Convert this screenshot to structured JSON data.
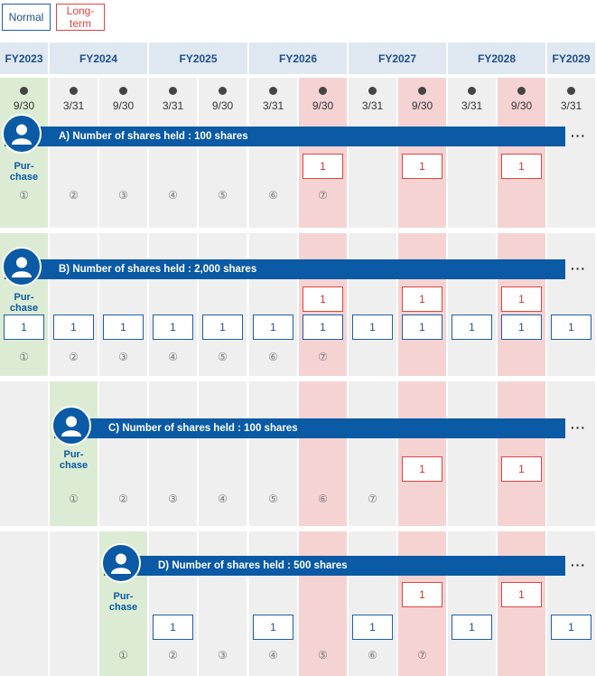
{
  "legend": {
    "normal": "Normal",
    "long_term": "Long-\nterm"
  },
  "fiscal_years": [
    "FY2023",
    "FY2024",
    "FY2025",
    "FY2026",
    "FY2027",
    "FY2028",
    "FY2029"
  ],
  "dates": [
    "9/30",
    "3/31",
    "9/30",
    "3/31",
    "9/30",
    "3/31",
    "9/30",
    "3/31",
    "9/30",
    "3/31",
    "9/30",
    "3/31"
  ],
  "long_term_date_indices": [
    6,
    8,
    10
  ],
  "purchase_label": "Pur-\nchase",
  "more_indicator": "···",
  "cases": [
    {
      "id": "A",
      "label": "A) Number of shares held : 100 shares",
      "purchase_index": 0,
      "long_term_boxes": [
        {
          "date_index": 6,
          "value": "1"
        },
        {
          "date_index": 8,
          "value": "1"
        },
        {
          "date_index": 10,
          "value": "1"
        }
      ],
      "normal_boxes": [],
      "periods": [
        {
          "date_index": 0,
          "text": "①"
        },
        {
          "date_index": 1,
          "text": "②"
        },
        {
          "date_index": 2,
          "text": "③"
        },
        {
          "date_index": 3,
          "text": "④"
        },
        {
          "date_index": 4,
          "text": "⑤"
        },
        {
          "date_index": 5,
          "text": "⑥"
        },
        {
          "date_index": 6,
          "text": "⑦"
        }
      ]
    },
    {
      "id": "B",
      "label": "B) Number of shares held : 2,000 shares",
      "purchase_index": 0,
      "long_term_boxes": [
        {
          "date_index": 6,
          "value": "1"
        },
        {
          "date_index": 8,
          "value": "1"
        },
        {
          "date_index": 10,
          "value": "1"
        }
      ],
      "normal_boxes": [
        {
          "date_index": 0,
          "value": "1"
        },
        {
          "date_index": 1,
          "value": "1"
        },
        {
          "date_index": 2,
          "value": "1"
        },
        {
          "date_index": 3,
          "value": "1"
        },
        {
          "date_index": 4,
          "value": "1"
        },
        {
          "date_index": 5,
          "value": "1"
        },
        {
          "date_index": 6,
          "value": "1"
        },
        {
          "date_index": 7,
          "value": "1"
        },
        {
          "date_index": 8,
          "value": "1"
        },
        {
          "date_index": 9,
          "value": "1"
        },
        {
          "date_index": 10,
          "value": "1"
        },
        {
          "date_index": 11,
          "value": "1"
        }
      ],
      "periods": [
        {
          "date_index": 0,
          "text": "①"
        },
        {
          "date_index": 1,
          "text": "②"
        },
        {
          "date_index": 2,
          "text": "③"
        },
        {
          "date_index": 3,
          "text": "④"
        },
        {
          "date_index": 4,
          "text": "⑤"
        },
        {
          "date_index": 5,
          "text": "⑥"
        },
        {
          "date_index": 6,
          "text": "⑦"
        }
      ]
    },
    {
      "id": "C",
      "label": "C) Number of shares held : 100 shares",
      "purchase_index": 1,
      "long_term_boxes": [
        {
          "date_index": 8,
          "value": "1"
        },
        {
          "date_index": 10,
          "value": "1"
        }
      ],
      "normal_boxes": [],
      "periods": [
        {
          "date_index": 1,
          "text": "①"
        },
        {
          "date_index": 2,
          "text": "②"
        },
        {
          "date_index": 3,
          "text": "③"
        },
        {
          "date_index": 4,
          "text": "④"
        },
        {
          "date_index": 5,
          "text": "⑤"
        },
        {
          "date_index": 6,
          "text": "⑥"
        },
        {
          "date_index": 7,
          "text": "⑦"
        }
      ]
    },
    {
      "id": "D",
      "label": "D) Number of shares held : 500 shares",
      "purchase_index": 2,
      "long_term_boxes": [
        {
          "date_index": 8,
          "value": "1"
        },
        {
          "date_index": 10,
          "value": "1"
        }
      ],
      "normal_boxes": [
        {
          "date_index": 3,
          "value": "1"
        },
        {
          "date_index": 5,
          "value": "1"
        },
        {
          "date_index": 7,
          "value": "1"
        },
        {
          "date_index": 9,
          "value": "1"
        },
        {
          "date_index": 11,
          "value": "1"
        }
      ],
      "periods": [
        {
          "date_index": 2,
          "text": "①"
        },
        {
          "date_index": 3,
          "text": "②"
        },
        {
          "date_index": 4,
          "text": "③"
        },
        {
          "date_index": 5,
          "text": "④"
        },
        {
          "date_index": 6,
          "text": "⑤"
        },
        {
          "date_index": 7,
          "text": "⑥"
        },
        {
          "date_index": 8,
          "text": "⑦"
        }
      ]
    }
  ]
}
